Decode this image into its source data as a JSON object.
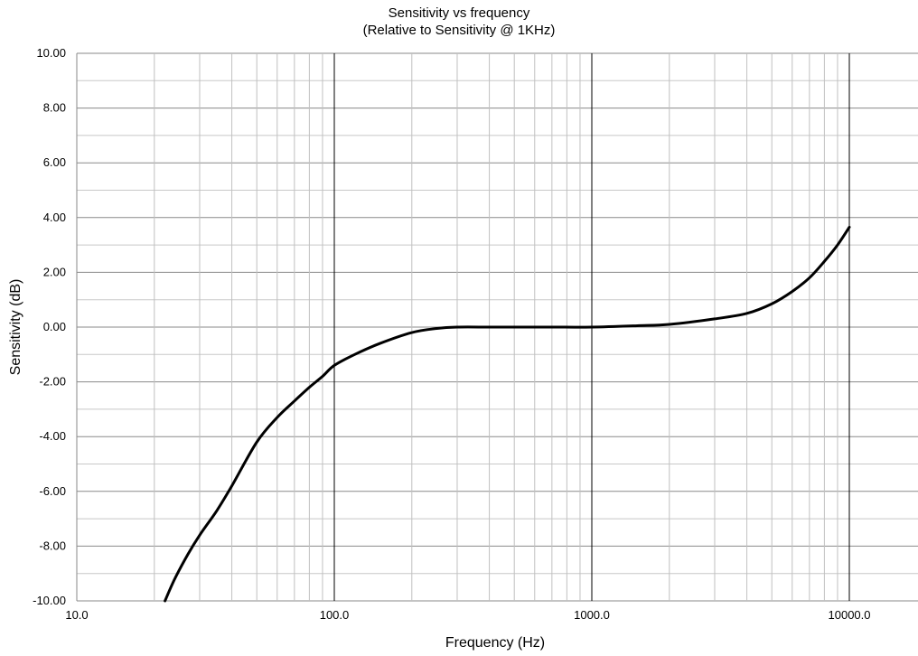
{
  "chart_data": {
    "type": "line",
    "title": "Sensitivity vs frequency",
    "subtitle": "(Relative to Sensitivity @ 1KHz)",
    "xlabel": "Frequency (Hz)",
    "ylabel": "Sensitivity (dB)",
    "x_scale": "log",
    "xlim": [
      10,
      10000
    ],
    "ylim": [
      -10,
      10
    ],
    "x_ticks": [
      "10.0",
      "100.0",
      "1000.0",
      "10000.0"
    ],
    "y_ticks": [
      "10.00",
      "8.00",
      "6.00",
      "4.00",
      "2.00",
      "0.00",
      "-2.00",
      "-4.00",
      "-6.00",
      "-8.00",
      "-10.00"
    ],
    "grid": true,
    "legend": "none",
    "line_color": "#000000",
    "series": [
      {
        "x": [
          22,
          24,
          27,
          30,
          35,
          40,
          50,
          60,
          70,
          80,
          90,
          100,
          120,
          150,
          200,
          250,
          300,
          400,
          500,
          700,
          1000,
          1500,
          2000,
          3000,
          4000,
          5000,
          6000,
          7000,
          8000,
          9000,
          10000
        ],
        "values": [
          -10.0,
          -9.2,
          -8.3,
          -7.6,
          -6.7,
          -5.8,
          -4.2,
          -3.3,
          -2.7,
          -2.2,
          -1.8,
          -1.4,
          -1.0,
          -0.6,
          -0.2,
          -0.05,
          0.0,
          0.0,
          0.0,
          0.0,
          0.0,
          0.05,
          0.1,
          0.3,
          0.5,
          0.85,
          1.3,
          1.8,
          2.4,
          3.0,
          3.65
        ]
      }
    ]
  }
}
